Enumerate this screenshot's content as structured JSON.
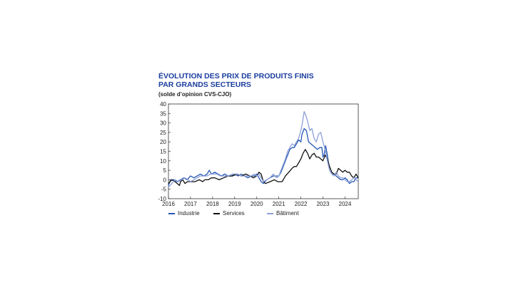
{
  "chart_data": {
    "type": "line",
    "title": "ÉVOLUTION DES PRIX DE PRODUITS FINIS PAR GRANDS SECTEURS",
    "title_lines": [
      "ÉVOLUTION DES PRIX DE PRODUITS FINIS",
      "PAR GRANDS SECTEURS"
    ],
    "subtitle": "(solde d’opinion CVS-CJO)",
    "xlabel": "",
    "ylabel": "",
    "xlim": [
      2016,
      2024.6
    ],
    "ylim": [
      -10,
      40
    ],
    "y_ticks": [
      -10,
      -5,
      0,
      5,
      10,
      15,
      20,
      25,
      30,
      35,
      40
    ],
    "x_ticks": [
      "2016",
      "2017",
      "2018",
      "2019",
      "2020",
      "2021",
      "2022",
      "2023",
      "2024"
    ],
    "grid": false,
    "legend_position": "bottom",
    "series": [
      {
        "name": "Industrie",
        "color": "#2456b4",
        "points": [
          [
            2016.0,
            -3
          ],
          [
            2016.1,
            0
          ],
          [
            2016.25,
            0
          ],
          [
            2016.4,
            -1
          ],
          [
            2016.55,
            0
          ],
          [
            2016.7,
            1
          ],
          [
            2016.85,
            0
          ],
          [
            2017.0,
            2
          ],
          [
            2017.15,
            1
          ],
          [
            2017.3,
            2
          ],
          [
            2017.45,
            3
          ],
          [
            2017.6,
            2
          ],
          [
            2017.75,
            3
          ],
          [
            2017.85,
            5
          ],
          [
            2017.95,
            3
          ],
          [
            2018.1,
            4
          ],
          [
            2018.25,
            3
          ],
          [
            2018.4,
            2
          ],
          [
            2018.55,
            3
          ],
          [
            2018.7,
            2
          ],
          [
            2018.85,
            2
          ],
          [
            2019.0,
            3
          ],
          [
            2019.15,
            2
          ],
          [
            2019.3,
            3
          ],
          [
            2019.45,
            2
          ],
          [
            2019.6,
            1
          ],
          [
            2019.75,
            2
          ],
          [
            2019.9,
            2
          ],
          [
            2020.0,
            3
          ],
          [
            2020.1,
            1
          ],
          [
            2020.2,
            -1
          ],
          [
            2020.3,
            -2
          ],
          [
            2020.45,
            0
          ],
          [
            2020.6,
            1
          ],
          [
            2020.75,
            2
          ],
          [
            2020.9,
            2
          ],
          [
            2021.0,
            2
          ],
          [
            2021.1,
            4
          ],
          [
            2021.2,
            7
          ],
          [
            2021.3,
            10
          ],
          [
            2021.4,
            13
          ],
          [
            2021.5,
            16
          ],
          [
            2021.6,
            17
          ],
          [
            2021.7,
            17
          ],
          [
            2021.8,
            19
          ],
          [
            2021.9,
            21
          ],
          [
            2022.0,
            20
          ],
          [
            2022.05,
            24
          ],
          [
            2022.15,
            27
          ],
          [
            2022.25,
            26
          ],
          [
            2022.35,
            20
          ],
          [
            2022.45,
            19
          ],
          [
            2022.55,
            18
          ],
          [
            2022.65,
            17
          ],
          [
            2022.75,
            16
          ],
          [
            2022.85,
            17
          ],
          [
            2022.95,
            17
          ],
          [
            2023.0,
            12
          ],
          [
            2023.05,
            13
          ],
          [
            2023.12,
            18
          ],
          [
            2023.2,
            13
          ],
          [
            2023.3,
            5
          ],
          [
            2023.4,
            3
          ],
          [
            2023.5,
            3
          ],
          [
            2023.6,
            2
          ],
          [
            2023.7,
            1
          ],
          [
            2023.8,
            0
          ],
          [
            2023.9,
            0
          ],
          [
            2024.0,
            1
          ],
          [
            2024.1,
            0
          ],
          [
            2024.2,
            -2
          ],
          [
            2024.3,
            -1
          ],
          [
            2024.4,
            -1
          ],
          [
            2024.5,
            1
          ],
          [
            2024.6,
            1
          ]
        ]
      },
      {
        "name": "Services",
        "color": "#111111",
        "points": [
          [
            2016.0,
            -2
          ],
          [
            2016.15,
            0
          ],
          [
            2016.3,
            -1
          ],
          [
            2016.4,
            -2
          ],
          [
            2016.5,
            -3
          ],
          [
            2016.55,
            -1
          ],
          [
            2016.65,
            0
          ],
          [
            2016.75,
            -2
          ],
          [
            2016.85,
            -1
          ],
          [
            2017.0,
            -1
          ],
          [
            2017.2,
            -1
          ],
          [
            2017.4,
            0
          ],
          [
            2017.55,
            -1
          ],
          [
            2017.65,
            0
          ],
          [
            2017.8,
            0
          ],
          [
            2017.95,
            1
          ],
          [
            2018.1,
            1
          ],
          [
            2018.3,
            0
          ],
          [
            2018.5,
            1
          ],
          [
            2018.7,
            2
          ],
          [
            2018.9,
            2
          ],
          [
            2019.1,
            3
          ],
          [
            2019.3,
            2
          ],
          [
            2019.5,
            3
          ],
          [
            2019.7,
            2
          ],
          [
            2019.85,
            1
          ],
          [
            2020.0,
            2
          ],
          [
            2020.1,
            4
          ],
          [
            2020.2,
            3
          ],
          [
            2020.3,
            -1
          ],
          [
            2020.4,
            -2
          ],
          [
            2020.6,
            -1
          ],
          [
            2020.8,
            0
          ],
          [
            2020.95,
            -1
          ],
          [
            2021.05,
            -1
          ],
          [
            2021.15,
            -1
          ],
          [
            2021.3,
            2
          ],
          [
            2021.45,
            4
          ],
          [
            2021.6,
            6
          ],
          [
            2021.7,
            7
          ],
          [
            2021.8,
            7
          ],
          [
            2021.9,
            9
          ],
          [
            2022.0,
            11
          ],
          [
            2022.1,
            14
          ],
          [
            2022.2,
            16
          ],
          [
            2022.3,
            14
          ],
          [
            2022.4,
            11
          ],
          [
            2022.5,
            13
          ],
          [
            2022.6,
            14
          ],
          [
            2022.7,
            12
          ],
          [
            2022.8,
            12
          ],
          [
            2022.9,
            11
          ],
          [
            2023.0,
            10
          ],
          [
            2023.1,
            13
          ],
          [
            2023.2,
            11
          ],
          [
            2023.3,
            7
          ],
          [
            2023.4,
            4
          ],
          [
            2023.5,
            3
          ],
          [
            2023.6,
            3
          ],
          [
            2023.7,
            6
          ],
          [
            2023.8,
            5
          ],
          [
            2023.9,
            4
          ],
          [
            2024.0,
            5
          ],
          [
            2024.1,
            4
          ],
          [
            2024.2,
            4
          ],
          [
            2024.3,
            2
          ],
          [
            2024.4,
            1
          ],
          [
            2024.5,
            3
          ],
          [
            2024.6,
            1
          ]
        ]
      },
      {
        "name": "Bâtiment",
        "color": "#8da0d8",
        "points": [
          [
            2016.0,
            -4
          ],
          [
            2016.15,
            -2
          ],
          [
            2016.3,
            0
          ],
          [
            2016.45,
            -1
          ],
          [
            2016.6,
            0
          ],
          [
            2016.75,
            1
          ],
          [
            2016.9,
            0
          ],
          [
            2017.0,
            -1
          ],
          [
            2017.15,
            0
          ],
          [
            2017.3,
            1
          ],
          [
            2017.45,
            2
          ],
          [
            2017.6,
            2
          ],
          [
            2017.75,
            2
          ],
          [
            2017.9,
            3
          ],
          [
            2018.05,
            3
          ],
          [
            2018.2,
            3
          ],
          [
            2018.35,
            2
          ],
          [
            2018.5,
            2
          ],
          [
            2018.7,
            2
          ],
          [
            2018.9,
            3
          ],
          [
            2019.0,
            3
          ],
          [
            2019.15,
            3
          ],
          [
            2019.3,
            2
          ],
          [
            2019.45,
            2
          ],
          [
            2019.6,
            2
          ],
          [
            2019.75,
            2
          ],
          [
            2019.9,
            3
          ],
          [
            2020.0,
            2
          ],
          [
            2020.1,
            3
          ],
          [
            2020.2,
            1
          ],
          [
            2020.3,
            -1
          ],
          [
            2020.45,
            0
          ],
          [
            2020.6,
            1
          ],
          [
            2020.75,
            3
          ],
          [
            2020.9,
            1
          ],
          [
            2021.0,
            2
          ],
          [
            2021.1,
            5
          ],
          [
            2021.2,
            8
          ],
          [
            2021.3,
            11
          ],
          [
            2021.4,
            15
          ],
          [
            2021.5,
            17
          ],
          [
            2021.6,
            19
          ],
          [
            2021.7,
            18
          ],
          [
            2021.8,
            20
          ],
          [
            2021.9,
            22
          ],
          [
            2022.0,
            26
          ],
          [
            2022.07,
            30
          ],
          [
            2022.15,
            36
          ],
          [
            2022.22,
            34
          ],
          [
            2022.3,
            31
          ],
          [
            2022.4,
            26
          ],
          [
            2022.5,
            27
          ],
          [
            2022.6,
            22
          ],
          [
            2022.7,
            20
          ],
          [
            2022.8,
            24
          ],
          [
            2022.9,
            25
          ],
          [
            2023.0,
            20
          ],
          [
            2023.1,
            16
          ],
          [
            2023.2,
            10
          ],
          [
            2023.3,
            5
          ],
          [
            2023.4,
            3
          ],
          [
            2023.5,
            2
          ],
          [
            2023.6,
            4
          ],
          [
            2023.7,
            2
          ],
          [
            2023.8,
            1
          ],
          [
            2023.9,
            1
          ],
          [
            2024.0,
            0
          ],
          [
            2024.1,
            -1
          ],
          [
            2024.2,
            -1
          ],
          [
            2024.3,
            0
          ],
          [
            2024.4,
            1
          ],
          [
            2024.5,
            0
          ],
          [
            2024.6,
            -1
          ]
        ]
      }
    ]
  }
}
